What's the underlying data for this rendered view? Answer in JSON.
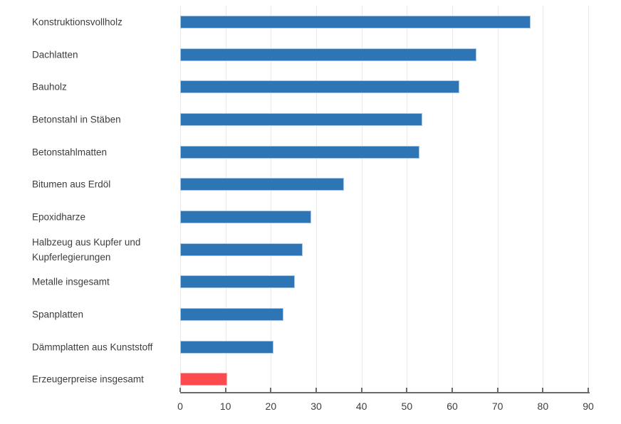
{
  "chart_data": {
    "type": "bar",
    "orientation": "horizontal",
    "title": "",
    "xlabel": "",
    "ylabel": "",
    "categories": [
      "Konstruktionsvollholz",
      "Dachlatten",
      "Bauholz",
      "Betonstahl in Stäben",
      "Betonstahlmatten",
      "Bitumen aus Erdöl",
      "Epoxidharze",
      "Halbzeug aus Kupfer und Kupferlegierungen",
      "Metalle insgesamt",
      "Spanplatten",
      "Dämmplatten aus Kunststoff",
      "Erzeugerpreise insgesamt"
    ],
    "values": [
      77.3,
      65.3,
      61.5,
      53.4,
      52.7,
      36.2,
      28.9,
      27.0,
      25.3,
      22.8,
      20.6,
      10.4
    ],
    "bar_colors": [
      "#2e75b6",
      "#2e75b6",
      "#2e75b6",
      "#2e75b6",
      "#2e75b6",
      "#2e75b6",
      "#2e75b6",
      "#2e75b6",
      "#2e75b6",
      "#2e75b6",
      "#2e75b6",
      "#fb4b4e"
    ],
    "bar_border_colors": [
      "#a2c4e5",
      "#a2c4e5",
      "#a2c4e5",
      "#a2c4e5",
      "#a2c4e5",
      "#a2c4e5",
      "#a2c4e5",
      "#a2c4e5",
      "#a2c4e5",
      "#a2c4e5",
      "#a2c4e5",
      "#ffa3a5"
    ],
    "highlight_category": "Erzeugerpreise insgesamt",
    "xlim": [
      0,
      90
    ],
    "x_ticks": [
      0,
      10,
      20,
      30,
      40,
      50,
      60,
      70,
      80,
      90
    ],
    "grid": "vertical",
    "legend": "none"
  },
  "colors": {
    "bar_blue": "#2e75b6",
    "bar_red": "#fb4b4e",
    "gridline": "#e9e9e9",
    "axis": "#6b6b6b",
    "text": "#3d3d3d",
    "background": "#ffffff"
  }
}
